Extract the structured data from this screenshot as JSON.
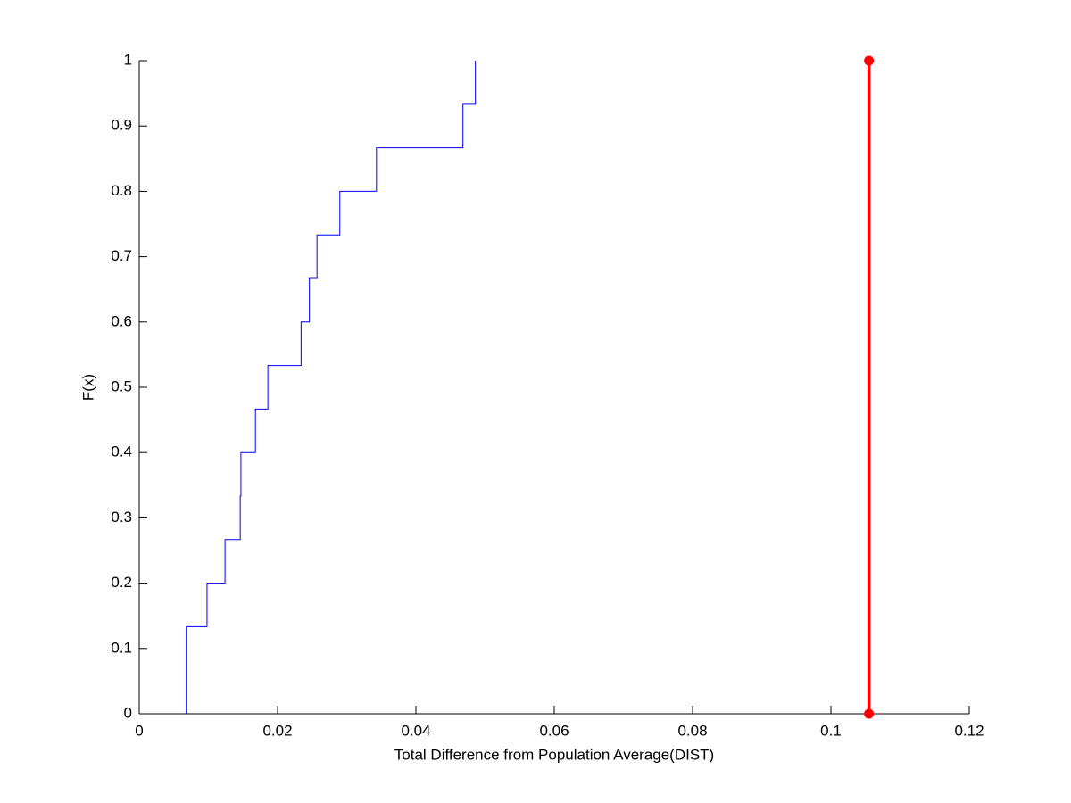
{
  "chart_data": {
    "type": "line",
    "xlabel": "Total Difference from Population Average(DIST)",
    "ylabel": "F(x)",
    "xlim": [
      0,
      0.12
    ],
    "ylim": [
      0,
      1
    ],
    "xticks": [
      0,
      0.02,
      0.04,
      0.06,
      0.08,
      0.1,
      0.12
    ],
    "yticks": [
      0,
      0.1,
      0.2,
      0.3,
      0.4,
      0.5,
      0.6,
      0.7,
      0.8,
      0.9,
      1
    ],
    "grid": false,
    "series": [
      {
        "color": "#0000ff",
        "line_width": 1,
        "markers": false,
        "x": [
          0.0068,
          0.0068,
          0.0098,
          0.0098,
          0.0124,
          0.0124,
          0.0146,
          0.0146,
          0.0147,
          0.0147,
          0.0168,
          0.0168,
          0.0186,
          0.0186,
          0.0234,
          0.0234,
          0.0246,
          0.0246,
          0.0257,
          0.0257,
          0.029,
          0.029,
          0.0343,
          0.0343,
          0.0468,
          0.0468,
          0.0486,
          0.0486
        ],
        "values": [
          0,
          0.1333,
          0.1333,
          0.2,
          0.2,
          0.2667,
          0.2667,
          0.3333,
          0.3333,
          0.4,
          0.4,
          0.4667,
          0.4667,
          0.5333,
          0.5333,
          0.6,
          0.6,
          0.6667,
          0.6667,
          0.7333,
          0.7333,
          0.8,
          0.8,
          0.8667,
          0.8667,
          0.9333,
          0.9333,
          1
        ]
      },
      {
        "color": "#ff0000",
        "line_width": 3.5,
        "markers": true,
        "x": [
          0.1055,
          0.1055
        ],
        "values": [
          0,
          1
        ]
      }
    ]
  }
}
